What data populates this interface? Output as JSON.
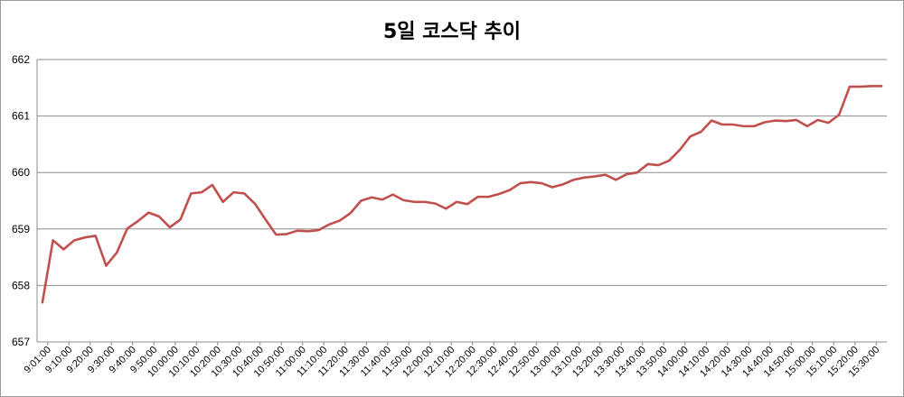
{
  "chart_data": {
    "type": "line",
    "title": "5일 코스닥 추이",
    "xlabel": "",
    "ylabel": "",
    "ylim": [
      657,
      662
    ],
    "yticks": [
      "657",
      "658",
      "659",
      "660",
      "661",
      "662"
    ],
    "grid": true,
    "legend": "none",
    "line_color": "#c0504d",
    "grid_color": "#8c8c8c",
    "x_tick_labels": [
      "9:01:00",
      "9:10:00",
      "9:20:00",
      "9:30:00",
      "9:40:00",
      "9:50:00",
      "10:00:00",
      "10:10:00",
      "10:20:00",
      "10:30:00",
      "10:40:00",
      "10:50:00",
      "11:00:00",
      "11:10:00",
      "11:20:00",
      "11:30:00",
      "11:40:00",
      "11:50:00",
      "12:00:00",
      "12:10:00",
      "12:20:00",
      "12:30:00",
      "12:40:00",
      "12:50:00",
      "13:00:00",
      "13:10:00",
      "13:20:00",
      "13:30:00",
      "13:40:00",
      "13:50:00",
      "14:00:00",
      "14:10:00",
      "14:20:00",
      "14:30:00",
      "14:40:00",
      "14:50:00",
      "15:00:00",
      "15:10:00",
      "15:20:00",
      "15:30:00"
    ],
    "series": [
      {
        "values": [
          657.7,
          658.8,
          658.64,
          658.8,
          658.85,
          658.88,
          658.35,
          658.58,
          659.01,
          659.14,
          659.29,
          659.22,
          659.03,
          659.17,
          659.63,
          659.65,
          659.78,
          659.48,
          659.65,
          659.63,
          659.45,
          659.17,
          658.9,
          658.91,
          658.97,
          658.96,
          658.98,
          659.08,
          659.15,
          659.28,
          659.5,
          659.56,
          659.52,
          659.61,
          659.51,
          659.48,
          659.48,
          659.45,
          659.36,
          659.48,
          659.44,
          659.57,
          659.57,
          659.62,
          659.69,
          659.81,
          659.83,
          659.81,
          659.74,
          659.79,
          659.87,
          659.91,
          659.93,
          659.96,
          659.87,
          659.97,
          660.0,
          660.15,
          660.13,
          660.21,
          660.4,
          660.64,
          660.72,
          660.92,
          660.85,
          660.85,
          660.82,
          660.82,
          660.89,
          660.92,
          660.91,
          660.93,
          660.82,
          660.93,
          660.88,
          661.02,
          661.52,
          661.52,
          661.53,
          661.53
        ]
      }
    ]
  }
}
